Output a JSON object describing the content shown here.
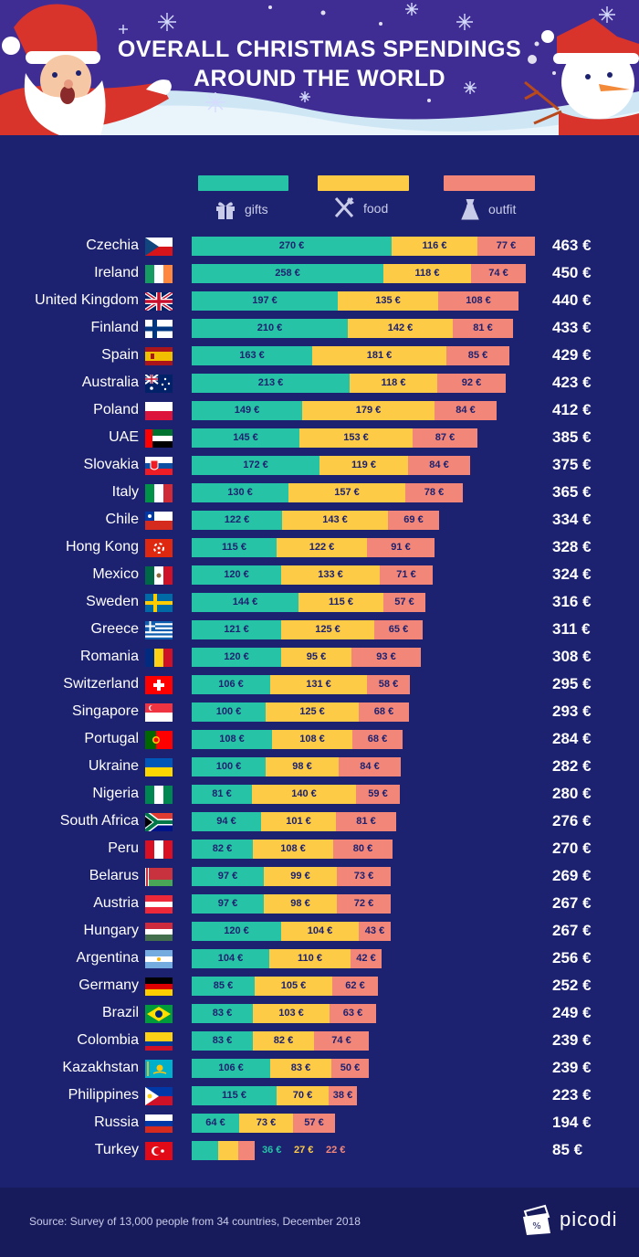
{
  "title": {
    "line1": "OVERALL CHRISTMAS SPENDINGS",
    "line2": "AROUND THE WORLD"
  },
  "legend": {
    "gifts": "gifts",
    "food": "food",
    "outfit": "outfit"
  },
  "colors": {
    "background": "#1d2270",
    "gifts": "#27c3a6",
    "food": "#fdcb46",
    "outfit": "#f28779"
  },
  "chart_data": {
    "type": "bar",
    "orientation": "horizontal",
    "stacked": true,
    "unit": "€",
    "categories": [
      "Czechia",
      "Ireland",
      "United Kingdom",
      "Finland",
      "Spain",
      "Australia",
      "Poland",
      "UAE",
      "Slovakia",
      "Italy",
      "Chile",
      "Hong Kong",
      "Mexico",
      "Sweden",
      "Greece",
      "Romania",
      "Switzerland",
      "Singapore",
      "Portugal",
      "Ukraine",
      "Nigeria",
      "South Africa",
      "Peru",
      "Belarus",
      "Austria",
      "Hungary",
      "Argentina",
      "Germany",
      "Brazil",
      "Colombia",
      "Kazakhstan",
      "Philippines",
      "Russia",
      "Turkey"
    ],
    "series": [
      {
        "name": "gifts",
        "values": [
          270,
          258,
          197,
          210,
          163,
          213,
          149,
          145,
          172,
          130,
          122,
          115,
          120,
          144,
          121,
          120,
          106,
          100,
          108,
          100,
          81,
          94,
          82,
          97,
          97,
          120,
          104,
          85,
          83,
          83,
          106,
          115,
          64,
          36
        ]
      },
      {
        "name": "food",
        "values": [
          116,
          118,
          135,
          142,
          181,
          118,
          179,
          153,
          119,
          157,
          143,
          122,
          133,
          115,
          125,
          95,
          131,
          125,
          108,
          98,
          140,
          101,
          108,
          99,
          98,
          104,
          110,
          105,
          103,
          82,
          83,
          70,
          73,
          27
        ]
      },
      {
        "name": "outfit",
        "values": [
          77,
          74,
          108,
          81,
          85,
          92,
          84,
          87,
          84,
          78,
          69,
          91,
          71,
          57,
          65,
          93,
          58,
          68,
          68,
          84,
          59,
          81,
          80,
          73,
          72,
          43,
          42,
          62,
          63,
          74,
          50,
          38,
          57,
          22
        ]
      }
    ],
    "totals": [
      463,
      450,
      440,
      433,
      429,
      423,
      412,
      385,
      375,
      365,
      334,
      328,
      324,
      316,
      311,
      308,
      295,
      293,
      284,
      282,
      280,
      276,
      270,
      269,
      267,
      267,
      256,
      252,
      249,
      239,
      239,
      223,
      194,
      85
    ],
    "value_labels": {
      "gifts": [
        "270 €",
        "258 €",
        "197 €",
        "210 €",
        "163 €",
        "213 €",
        "149 €",
        "145 €",
        "172 €",
        "130 €",
        "122 €",
        "115 €",
        "120 €",
        "144 €",
        "121 €",
        "120 €",
        "106 €",
        "100 €",
        "108 €",
        "100 €",
        "81 €",
        "94 €",
        "82 €",
        "97 €",
        "97 €",
        "120 €",
        "104 €",
        "85 €",
        "83 €",
        "83 €",
        "106 €",
        "115 €",
        "64 €",
        "36 €"
      ],
      "food": [
        "116 €",
        "118 €",
        "135 €",
        "142 €",
        "181 €",
        "118 €",
        "179 €",
        "153 €",
        "119 €",
        "157 €",
        "143 €",
        "122 €",
        "133 €",
        "115 €",
        "125 €",
        "95 €",
        "131 €",
        "125 €",
        "108 €",
        "98 €",
        "140 €",
        "101 €",
        "108 €",
        "99 €",
        "98 €",
        "104 €",
        "110 €",
        "105 €",
        "103 €",
        "82 €",
        "83 €",
        "70 €",
        "73 €",
        "27 €"
      ],
      "outfit": [
        "77 €",
        "74 €",
        "108 €",
        "81 €",
        "85 €",
        "92 €",
        "84 €",
        "87 €",
        "84 €",
        "78 €",
        "69 €",
        "91 €",
        "71 €",
        "57 €",
        "65 €",
        "93 €",
        "58 €",
        "68 €",
        "68 €",
        "84 €",
        "59 €",
        "81 €",
        "80 €",
        "73 €",
        "72 €",
        "43 €",
        "42 €",
        "62 €",
        "63 €",
        "74 €",
        "50 €",
        "38 €",
        "57 €",
        "22 €"
      ],
      "totals": [
        "463 €",
        "450 €",
        "440 €",
        "433 €",
        "429 €",
        "423 €",
        "412 €",
        "385 €",
        "375 €",
        "365 €",
        "334 €",
        "328 €",
        "324 €",
        "316 €",
        "311 €",
        "308 €",
        "295 €",
        "293 €",
        "284 €",
        "282 €",
        "280 €",
        "276 €",
        "270 €",
        "269 €",
        "267 €",
        "267 €",
        "256 €",
        "252 €",
        "249 €",
        "239 €",
        "239 €",
        "223 €",
        "194 €",
        "85 €"
      ]
    }
  },
  "footer": {
    "source": "Source: Survey of 13,000 people from 34 countries, December 2018",
    "brand": "picodi"
  }
}
